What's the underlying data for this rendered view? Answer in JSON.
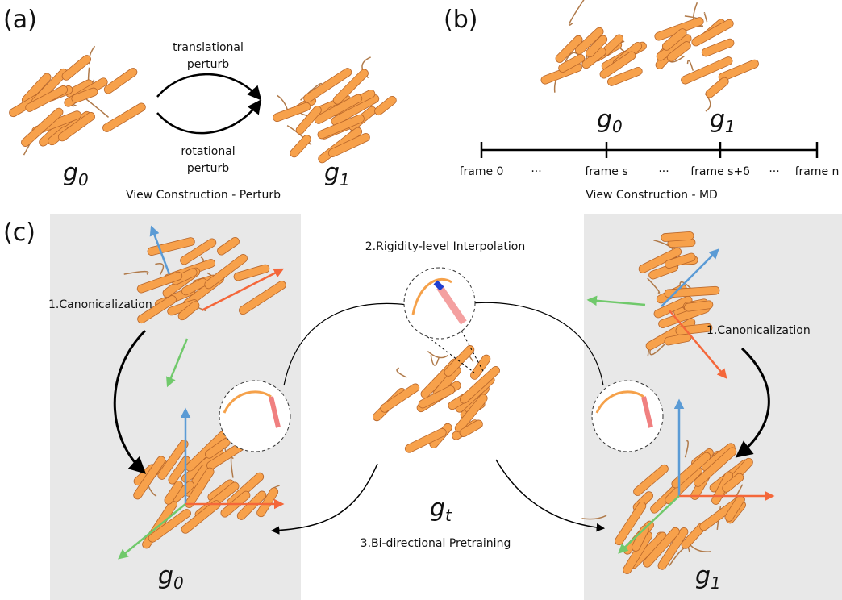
{
  "panel_a": {
    "label": "(a)",
    "arrow_top": [
      "translational",
      "perturb"
    ],
    "arrow_bottom": [
      "rotational",
      "perturb"
    ],
    "g_left": {
      "base": "g",
      "sub": "0"
    },
    "g_right": {
      "base": "g",
      "sub": "1"
    },
    "caption": "View Construction - Perturb"
  },
  "panel_b": {
    "label": "(b)",
    "g_left": {
      "base": "g",
      "sub": "0"
    },
    "g_right": {
      "base": "g",
      "sub": "1"
    },
    "timeline": [
      "frame 0",
      "···",
      "frame s",
      "···",
      "frame s+δ",
      "···",
      "frame n"
    ],
    "caption": "View Construction - MD"
  },
  "panel_c": {
    "label": "(c)",
    "interpolation": "2.Rigidity-level Interpolation",
    "canon_left": "1.Canonicalization",
    "canon_right": "1.Canonicalization",
    "pretraining": "3.Bi-directional Pretraining",
    "g_left": {
      "base": "g",
      "sub": "0"
    },
    "g_center": {
      "base": "g",
      "sub": "t"
    },
    "g_right": {
      "base": "g",
      "sub": "1"
    }
  }
}
